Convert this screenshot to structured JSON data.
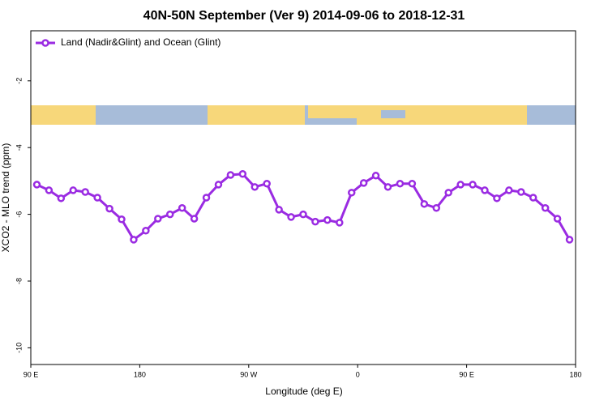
{
  "chart_data": {
    "type": "line",
    "title": "40N-50N September (Ver 9)   2014-09-06 to 2018-12-31",
    "x_label": "Longitude (deg E)",
    "y_label": "XCO2 - MLO trend (ppm)",
    "legend": "top-left",
    "xlim": [
      90,
      540
    ],
    "ylim": [
      -10.5,
      -0.5
    ],
    "xticks": [
      {
        "value": 90,
        "label": "90 E"
      },
      {
        "value": 180,
        "label": "180"
      },
      {
        "value": 270,
        "label": "90 W"
      },
      {
        "value": 360,
        "label": "0"
      },
      {
        "value": 450,
        "label": "90 E"
      },
      {
        "value": 540,
        "label": "180"
      }
    ],
    "yticks": [
      -10,
      -8,
      -6,
      -4,
      -2
    ],
    "x": [
      95,
      105,
      115,
      125,
      135,
      145,
      155,
      165,
      175,
      185,
      195,
      205,
      215,
      225,
      235,
      245,
      255,
      265,
      275,
      285,
      295,
      305,
      315,
      325,
      335,
      345,
      355,
      365,
      375,
      385,
      395,
      405,
      415,
      425,
      435,
      445,
      455,
      465,
      475,
      485,
      495,
      505,
      515,
      525,
      535
    ],
    "series": [
      {
        "name": "Land (Nadir&Glint) and Ocean (Glint)",
        "color": "#9a2be2",
        "values": [
          -5.11,
          -5.28,
          -5.52,
          -5.28,
          -5.33,
          -5.5,
          -5.83,
          -6.15,
          -6.76,
          -6.49,
          -6.13,
          -6.0,
          -5.81,
          -6.13,
          -5.5,
          -5.11,
          -4.82,
          -4.79,
          -5.18,
          -5.08,
          -5.86,
          -6.08,
          -6.0,
          -6.22,
          -6.17,
          -6.25,
          -5.35,
          -5.06,
          -4.84,
          -5.18,
          -5.08,
          -5.08,
          -5.69,
          -5.81,
          -5.35,
          -5.11,
          -5.11,
          -5.28,
          -5.52,
          -5.28,
          -5.33,
          -5.5,
          -5.81,
          -6.13,
          -6.76
        ]
      }
    ]
  }
}
